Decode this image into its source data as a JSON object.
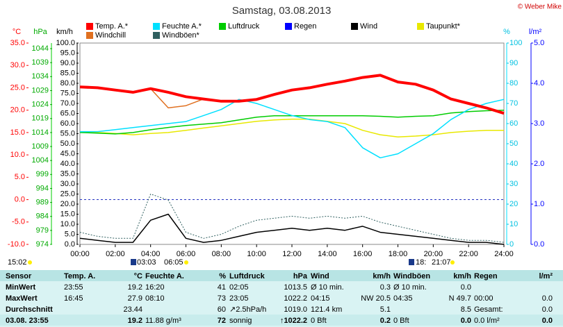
{
  "chart_data": {
    "type": "line",
    "title": "Samstag, 03.08.2013",
    "copyright": "© Weber Mike",
    "y_label": "°C",
    "y2_label": "%",
    "y3_label": "hPa",
    "y4_label": "km/h",
    "y5_label": "l/m²",
    "x": [
      0,
      1,
      2,
      3,
      4,
      5,
      6,
      7,
      8,
      9,
      10,
      11,
      12,
      13,
      14,
      15,
      16,
      17,
      18,
      19,
      20,
      21,
      22,
      23,
      24
    ],
    "xlim": [
      0,
      24
    ],
    "xticks": [
      {
        "value": 0,
        "label": "00:00"
      },
      {
        "value": 2,
        "label": "02:00"
      },
      {
        "value": 4,
        "label": "04:00"
      },
      {
        "value": 6,
        "label": "06:00"
      },
      {
        "value": 8,
        "label": "08:00"
      },
      {
        "value": 10,
        "label": "10:00"
      },
      {
        "value": 12,
        "label": "12:00"
      },
      {
        "value": 14,
        "label": "14:00"
      },
      {
        "value": 16,
        "label": "16:00"
      },
      {
        "value": 18,
        "label": "18:00"
      },
      {
        "value": 20,
        "label": "20:00"
      },
      {
        "value": 22,
        "label": "22:00"
      },
      {
        "value": 24,
        "label": "24:00"
      }
    ],
    "ylim": [
      -10,
      35
    ],
    "yticks": [
      {
        "value": 35,
        "label": "35.0"
      },
      {
        "value": 30,
        "label": "30.0"
      },
      {
        "value": 25,
        "label": "25.0"
      },
      {
        "value": 20,
        "label": "20.0"
      },
      {
        "value": 15,
        "label": "15.0"
      },
      {
        "value": 10,
        "label": "10.0"
      },
      {
        "value": 5,
        "label": "5.0"
      },
      {
        "value": 0,
        "label": "0.0"
      },
      {
        "value": -5,
        "label": "-5.0"
      },
      {
        "value": -10,
        "label": "-10.0"
      }
    ],
    "y2lim": [
      0,
      100
    ],
    "y2ticks": [
      100,
      90,
      80,
      70,
      60,
      50,
      40,
      30,
      20,
      10,
      0
    ],
    "y3lim": [
      974,
      1046
    ],
    "y3ticks": [
      1044,
      1039,
      1034,
      1029,
      1024,
      1019,
      1014,
      1009,
      1004,
      999,
      994,
      989,
      984,
      979,
      974
    ],
    "y4lim": [
      0,
      100
    ],
    "y4ticks": [
      {
        "value": 100,
        "label": "100.0"
      },
      {
        "value": 95,
        "label": "95.0"
      },
      {
        "value": 90,
        "label": "90.0"
      },
      {
        "value": 85,
        "label": "85.0"
      },
      {
        "value": 80,
        "label": "80.0"
      },
      {
        "value": 75,
        "label": "75.0"
      },
      {
        "value": 70,
        "label": "70.0"
      },
      {
        "value": 65,
        "label": "65.0"
      },
      {
        "value": 60,
        "label": "60.0"
      },
      {
        "value": 55,
        "label": "55.0"
      },
      {
        "value": 50,
        "label": "50.0"
      },
      {
        "value": 45,
        "label": "45.0"
      },
      {
        "value": 40,
        "label": "40.0"
      },
      {
        "value": 35,
        "label": "35.0"
      },
      {
        "value": 30,
        "label": "30.0"
      },
      {
        "value": 25,
        "label": "25.0"
      },
      {
        "value": 20,
        "label": "20.0"
      },
      {
        "value": 15,
        "label": "15.0"
      },
      {
        "value": 10,
        "label": "10.0"
      },
      {
        "value": 5,
        "label": "5.0"
      },
      {
        "value": 0,
        "label": "0.0"
      }
    ],
    "y5lim": [
      0,
      5
    ],
    "y5ticks": [
      {
        "value": 5,
        "label": "5.0"
      },
      {
        "value": 4,
        "label": "4.0"
      },
      {
        "value": 3,
        "label": "3.0"
      },
      {
        "value": 2,
        "label": "2.0"
      },
      {
        "value": 1,
        "label": "1.0"
      },
      {
        "value": 0,
        "label": "0.0"
      }
    ],
    "series": [
      {
        "name": "Temp. A.*",
        "color": "#ff0000",
        "axis": "y",
        "values": [
          25.2,
          25,
          24.5,
          24,
          24.8,
          24,
          23,
          22.5,
          22,
          22,
          22.4,
          23.5,
          24.5,
          25,
          25.8,
          26.5,
          27.3,
          27.8,
          26.3,
          25.8,
          24.5,
          22.5,
          21.5,
          20.5,
          19.3
        ]
      },
      {
        "name": "Windchill",
        "color": "#e07020",
        "axis": "y",
        "values": [
          25.2,
          25,
          24.5,
          24,
          24.8,
          20.5,
          21,
          22.5,
          22,
          22,
          22.4,
          23.5,
          24.5,
          25,
          25.8,
          26.5,
          27.3,
          27.8,
          26.3,
          25.8,
          24.5,
          22.5,
          21.5,
          20.5,
          19.3
        ]
      },
      {
        "name": "Feuchte A.*",
        "color": "#00e0ff",
        "axis": "y2",
        "values": [
          56,
          56,
          57,
          58,
          59,
          60,
          61,
          64,
          67,
          72,
          70,
          67,
          64,
          62,
          61,
          58,
          48,
          43,
          45,
          50,
          55,
          62,
          67,
          70,
          72
        ]
      },
      {
        "name": "Windböen*",
        "color": "#306060",
        "axis": "y4",
        "values": [
          6,
          4,
          3,
          3,
          25,
          22,
          6,
          3,
          5,
          9,
          12,
          13,
          14,
          13,
          14,
          13,
          14,
          11,
          9,
          7,
          5,
          3,
          2,
          2,
          1
        ]
      },
      {
        "name": "Luftdruck",
        "color": "#00cc00",
        "axis": "y3",
        "values": [
          1014,
          1013.8,
          1013.5,
          1014,
          1015,
          1015.8,
          1016.5,
          1017,
          1017.5,
          1018.5,
          1019.5,
          1020,
          1020,
          1020,
          1020,
          1020,
          1020,
          1019.8,
          1019.5,
          1019.8,
          1020,
          1021,
          1021.5,
          1021.8,
          1022
        ]
      },
      {
        "name": "Regen",
        "color": "#0000ff",
        "axis": "y5",
        "values": [
          0,
          0,
          0,
          0,
          0,
          0,
          0,
          0,
          0,
          0,
          0,
          0,
          0,
          0,
          0,
          0,
          0,
          0,
          0,
          0,
          0,
          0,
          0,
          0,
          0
        ]
      },
      {
        "name": "Wind",
        "color": "#000000",
        "axis": "y4",
        "values": [
          3,
          2,
          1,
          1,
          12,
          15,
          3,
          1,
          2,
          4,
          6,
          7,
          8,
          7,
          8,
          7,
          9,
          6,
          5,
          4,
          3,
          2,
          1,
          1,
          0
        ]
      },
      {
        "name": "Taupunkt*",
        "color": "#e8e800",
        "axis": "y",
        "values": [
          15.2,
          15,
          14.8,
          14.5,
          14.8,
          15,
          15.5,
          16,
          16.5,
          17,
          17.5,
          17.8,
          18,
          18,
          17.5,
          17,
          15.5,
          14.5,
          14,
          14.2,
          14.5,
          15,
          15.3,
          15.5,
          15.5
        ]
      }
    ],
    "annotations": [
      "15:02",
      "03:03",
      "06:05",
      "18:",
      "21:07"
    ]
  },
  "table": {
    "header": [
      "Sensor",
      [
        "Temp. A.",
        "°C"
      ],
      [
        "Feuchte A.",
        "%"
      ],
      [
        "Luftdruck",
        "hPa"
      ],
      [
        "Wind",
        "km/h"
      ],
      [
        "Windböen",
        "km/h"
      ],
      [
        "Regen",
        "l/m²"
      ]
    ],
    "rows": [
      {
        "label": "MinWert",
        "cells": [
          [
            "23:55",
            "19.2"
          ],
          [
            "16:20",
            "41"
          ],
          [
            "02:05",
            "1013.5"
          ],
          [
            "Ø 10 min.",
            "0.3"
          ],
          [
            "Ø 10 min.",
            "0.0"
          ],
          []
        ]
      },
      {
        "label": "MaxWert",
        "cells": [
          [
            "16:45",
            "27.9"
          ],
          [
            "08:10",
            "73"
          ],
          [
            "23:05",
            "1022.2"
          ],
          [
            "04:15",
            "NW 20.5"
          ],
          [
            "04:35",
            "N 49.7"
          ],
          [
            "00:00",
            "0.0"
          ]
        ]
      },
      {
        "label": "Durchschnitt",
        "cells": [
          [
            "23.44"
          ],
          [
            "60"
          ],
          [
            "↗2.5hPa/h",
            "1019.0"
          ],
          [
            "121.4 km",
            "5.1"
          ],
          [
            "8.5"
          ],
          [
            "Gesamt:",
            "0.0"
          ]
        ]
      },
      {
        "label": "03.08. 23:55",
        "cells": [
          [
            "19.2"
          ],
          [
            "11.88 g/m³",
            "72"
          ],
          [
            "sonnig",
            "↑1022.2"
          ],
          [
            "0 Bft",
            "0.2"
          ],
          [
            "0 Bft",
            "0.0"
          ],
          [
            "0.0 l/m²",
            "0.0"
          ]
        ]
      }
    ]
  }
}
